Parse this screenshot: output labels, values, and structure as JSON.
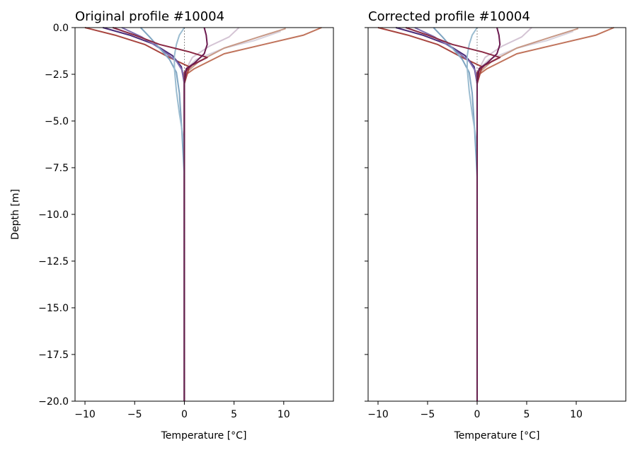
{
  "chart_data": [
    {
      "type": "line",
      "title": "Original profile #10004",
      "xlabel": "Temperature [°C]",
      "ylabel": "Depth [m]",
      "xlim": [
        -11,
        15
      ],
      "ylim": [
        -20,
        0
      ],
      "xticks": [
        -10,
        -5,
        0,
        5,
        10
      ],
      "yticks": [
        0.0,
        -2.5,
        -5.0,
        -7.5,
        -10.0,
        -12.5,
        -15.0,
        -17.5,
        -20.0
      ],
      "xtick_labels": [
        "−10",
        "−5",
        "0",
        "5",
        "10"
      ],
      "ytick_labels": [
        "0.0",
        "−2.5",
        "−5.0",
        "−7.5",
        "−10.0",
        "−12.5",
        "−15.0",
        "−17.5",
        "−20.0"
      ],
      "grid": false,
      "reference_line_x": 0,
      "series": [
        {
          "color": "#d4c4d4",
          "points": [
            [
              5.5,
              0
            ],
            [
              4.5,
              -0.5
            ],
            [
              2.5,
              -1
            ],
            [
              0.8,
              -1.6
            ],
            [
              0.1,
              -2.3
            ],
            [
              0,
              -3
            ],
            [
              0,
              -20
            ]
          ]
        },
        {
          "color": "#d8d3de",
          "points": [
            [
              9.7,
              -0.2
            ],
            [
              7,
              -0.7
            ],
            [
              4,
              -1.1
            ],
            [
              1.2,
              -1.7
            ],
            [
              0.2,
              -2.2
            ],
            [
              0,
              -3
            ],
            [
              0,
              -20
            ]
          ]
        },
        {
          "color": "#c79886",
          "points": [
            [
              10.2,
              -0.05
            ],
            [
              7.5,
              -0.5
            ],
            [
              4,
              -1.1
            ],
            [
              1.5,
              -1.8
            ],
            [
              0.2,
              -2.4
            ],
            [
              0,
              -3
            ],
            [
              0,
              -20
            ]
          ]
        },
        {
          "color": "#c0735b",
          "points": [
            [
              13.8,
              0
            ],
            [
              12,
              -0.4
            ],
            [
              8,
              -0.9
            ],
            [
              4,
              -1.4
            ],
            [
              1,
              -2.2
            ],
            [
              0.2,
              -2.5
            ],
            [
              0,
              -3
            ],
            [
              0,
              -20
            ]
          ]
        },
        {
          "color": "#a8453f",
          "points": [
            [
              -10,
              0
            ],
            [
              -7,
              -0.4
            ],
            [
              -4,
              -0.9
            ],
            [
              -1.5,
              -1.6
            ],
            [
              0.5,
              -2.1
            ],
            [
              0,
              -3
            ],
            [
              0,
              -20
            ]
          ]
        },
        {
          "color": "#4b2d7a",
          "points": [
            [
              -8.2,
              0
            ],
            [
              -5.5,
              -0.4
            ],
            [
              -3,
              -0.9
            ],
            [
              -1.2,
              -1.5
            ],
            [
              -0.3,
              -2.1
            ],
            [
              0,
              -3
            ],
            [
              0,
              -20
            ]
          ]
        },
        {
          "color": "#7e6fb0",
          "points": [
            [
              -6.3,
              0
            ],
            [
              -4.3,
              -0.5
            ],
            [
              -2.5,
              -1.1
            ],
            [
              -0.8,
              -1.8
            ],
            [
              -0.2,
              -2.3
            ],
            [
              0,
              -3
            ],
            [
              0,
              -20
            ]
          ]
        },
        {
          "color": "#7fa5c2",
          "points": [
            [
              -4.4,
              0
            ],
            [
              -3.5,
              -0.5
            ],
            [
              -2.5,
              -1.1
            ],
            [
              -1.5,
              -1.7
            ],
            [
              -0.8,
              -2.4
            ],
            [
              -0.5,
              -3.5
            ],
            [
              -0.25,
              -5.5
            ],
            [
              0,
              -8
            ],
            [
              0,
              -20
            ]
          ]
        },
        {
          "color": "#9bbcd0",
          "points": [
            [
              0,
              0
            ],
            [
              -0.5,
              -0.4
            ],
            [
              -0.8,
              -0.9
            ],
            [
              -1,
              -1.5
            ],
            [
              -1,
              -2.2
            ],
            [
              -0.8,
              -3.4
            ],
            [
              -0.5,
              -4.6
            ],
            [
              -0.2,
              -5.6
            ],
            [
              0,
              -6.5
            ],
            [
              0,
              -20
            ]
          ]
        },
        {
          "color": "#8b2a45",
          "points": [
            [
              -7.2,
              0
            ],
            [
              -5,
              -0.4
            ],
            [
              -2.5,
              -0.9
            ],
            [
              0.5,
              -1.3
            ],
            [
              2.3,
              -1.6
            ],
            [
              0.8,
              -2.0
            ],
            [
              0,
              -2.4
            ],
            [
              0,
              -20
            ]
          ]
        },
        {
          "color": "#6b1a4f",
          "points": [
            [
              2,
              0
            ],
            [
              2.2,
              -0.4
            ],
            [
              2.3,
              -0.9
            ],
            [
              2,
              -1.4
            ],
            [
              1,
              -1.9
            ],
            [
              0.2,
              -2.2
            ],
            [
              0,
              -3
            ],
            [
              0,
              -20
            ]
          ]
        }
      ]
    },
    {
      "type": "line",
      "title": "Corrected profile #10004",
      "xlabel": "Temperature [°C]",
      "ylabel": "",
      "xlim": [
        -11,
        15
      ],
      "ylim": [
        -20,
        0
      ],
      "xticks": [
        -10,
        -5,
        0,
        5,
        10
      ],
      "yticks": [
        0.0,
        -2.5,
        -5.0,
        -7.5,
        -10.0,
        -12.5,
        -15.0,
        -17.5,
        -20.0
      ],
      "xtick_labels": [
        "−10",
        "−5",
        "0",
        "5",
        "10"
      ],
      "ytick_labels": [],
      "grid": false,
      "reference_line_x": 0,
      "series": [
        {
          "color": "#d4c4d4",
          "points": [
            [
              5.5,
              0
            ],
            [
              4.5,
              -0.5
            ],
            [
              2.5,
              -1
            ],
            [
              0.8,
              -1.6
            ],
            [
              0.1,
              -2.3
            ],
            [
              0,
              -3
            ],
            [
              0,
              -20
            ]
          ]
        },
        {
          "color": "#d8d3de",
          "points": [
            [
              9.7,
              -0.2
            ],
            [
              7,
              -0.7
            ],
            [
              4,
              -1.1
            ],
            [
              1.2,
              -1.7
            ],
            [
              0.2,
              -2.2
            ],
            [
              0,
              -3
            ],
            [
              0,
              -20
            ]
          ]
        },
        {
          "color": "#c79886",
          "points": [
            [
              10.2,
              -0.05
            ],
            [
              7.5,
              -0.5
            ],
            [
              4,
              -1.1
            ],
            [
              1.5,
              -1.8
            ],
            [
              0.2,
              -2.4
            ],
            [
              0,
              -3
            ],
            [
              0,
              -20
            ]
          ]
        },
        {
          "color": "#c0735b",
          "points": [
            [
              13.8,
              0
            ],
            [
              12,
              -0.4
            ],
            [
              8,
              -0.9
            ],
            [
              4,
              -1.4
            ],
            [
              1,
              -2.2
            ],
            [
              0.2,
              -2.5
            ],
            [
              0,
              -3
            ],
            [
              0,
              -20
            ]
          ]
        },
        {
          "color": "#a8453f",
          "points": [
            [
              -10,
              0
            ],
            [
              -7,
              -0.4
            ],
            [
              -4,
              -0.9
            ],
            [
              -1.5,
              -1.6
            ],
            [
              0.5,
              -2.1
            ],
            [
              0,
              -3
            ],
            [
              0,
              -20
            ]
          ]
        },
        {
          "color": "#4b2d7a",
          "points": [
            [
              -8.2,
              0
            ],
            [
              -5.5,
              -0.4
            ],
            [
              -3,
              -0.9
            ],
            [
              -1.2,
              -1.5
            ],
            [
              -0.3,
              -2.1
            ],
            [
              0,
              -3
            ],
            [
              0,
              -20
            ]
          ]
        },
        {
          "color": "#7e6fb0",
          "points": [
            [
              -6.3,
              0
            ],
            [
              -4.3,
              -0.5
            ],
            [
              -2.5,
              -1.1
            ],
            [
              -0.8,
              -1.8
            ],
            [
              -0.2,
              -2.3
            ],
            [
              0,
              -3
            ],
            [
              0,
              -20
            ]
          ]
        },
        {
          "color": "#7fa5c2",
          "points": [
            [
              -4.4,
              0
            ],
            [
              -3.5,
              -0.5
            ],
            [
              -2.5,
              -1.1
            ],
            [
              -1.5,
              -1.7
            ],
            [
              -0.8,
              -2.4
            ],
            [
              -0.5,
              -3.5
            ],
            [
              -0.25,
              -5.5
            ],
            [
              0,
              -8
            ],
            [
              0,
              -15
            ]
          ]
        },
        {
          "color": "#9bbcd0",
          "points": [
            [
              0,
              0
            ],
            [
              -0.5,
              -0.4
            ],
            [
              -0.8,
              -0.9
            ],
            [
              -1,
              -1.5
            ],
            [
              -1,
              -2.2
            ],
            [
              -0.8,
              -3.4
            ],
            [
              -0.5,
              -4.6
            ],
            [
              -0.2,
              -5.6
            ],
            [
              0,
              -6.5
            ],
            [
              0,
              -15
            ]
          ]
        },
        {
          "color": "#8b2a45",
          "points": [
            [
              -7.2,
              0
            ],
            [
              -5,
              -0.4
            ],
            [
              -2.5,
              -0.9
            ],
            [
              0.5,
              -1.3
            ],
            [
              2.3,
              -1.6
            ],
            [
              0.8,
              -2.0
            ],
            [
              0,
              -2.4
            ],
            [
              0,
              -20
            ]
          ]
        },
        {
          "color": "#6b1a4f",
          "points": [
            [
              2,
              0
            ],
            [
              2.2,
              -0.4
            ],
            [
              2.3,
              -0.9
            ],
            [
              2,
              -1.4
            ],
            [
              1,
              -1.9
            ],
            [
              0.2,
              -2.2
            ],
            [
              0,
              -3
            ],
            [
              0,
              -20
            ]
          ]
        }
      ]
    }
  ]
}
